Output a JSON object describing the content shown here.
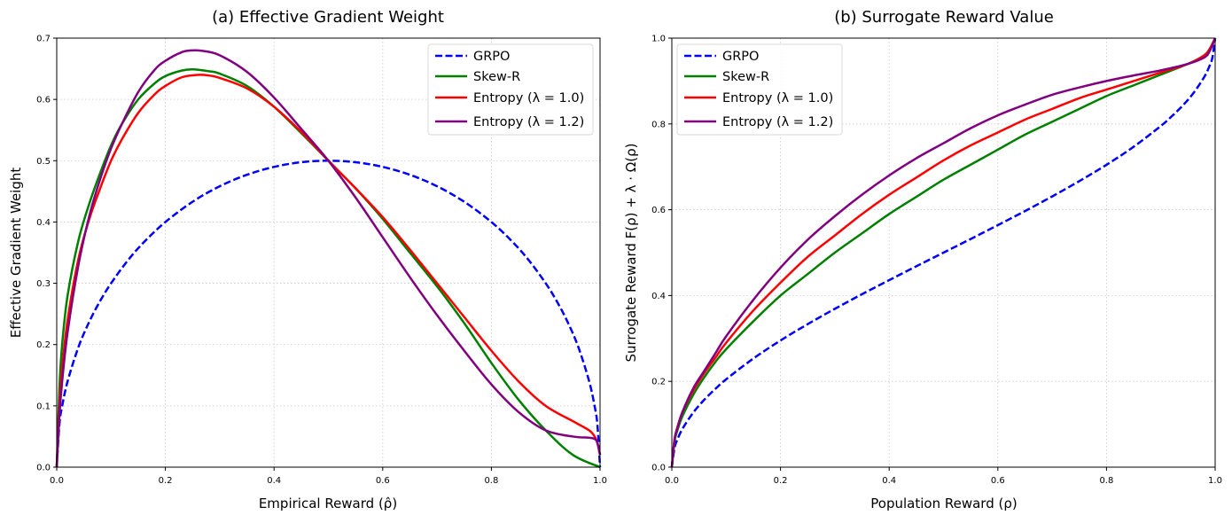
{
  "chart_data": [
    {
      "type": "line",
      "title": "(a) Effective Gradient Weight",
      "xlabel": "Empirical Reward (ρ̂)",
      "ylabel": "Effective Gradient Weight",
      "xlim": [
        0,
        1
      ],
      "ylim": [
        0,
        0.7
      ],
      "xticks": [
        "0.0",
        "0.2",
        "0.4",
        "0.6",
        "0.8",
        "1.0"
      ],
      "yticks": [
        "0.0",
        "0.1",
        "0.2",
        "0.3",
        "0.4",
        "0.5",
        "0.6",
        "0.7"
      ],
      "grid": true,
      "legend_position": "top-right",
      "series": [
        {
          "name": "GRPO",
          "legend_label": "GRPO",
          "color": "#0000ff",
          "style": "dashed",
          "points": [
            [
              0.0,
              0.0
            ],
            [
              0.005,
              0.0705
            ],
            [
              0.01,
              0.0995
            ],
            [
              0.02,
              0.14
            ],
            [
              0.04,
              0.196
            ],
            [
              0.06,
              0.2375
            ],
            [
              0.08,
              0.2713
            ],
            [
              0.1,
              0.3
            ],
            [
              0.13,
              0.3363
            ],
            [
              0.16,
              0.3666
            ],
            [
              0.2,
              0.4
            ],
            [
              0.25,
              0.433
            ],
            [
              0.3,
              0.4583
            ],
            [
              0.35,
              0.477
            ],
            [
              0.4,
              0.4899
            ],
            [
              0.45,
              0.4975
            ],
            [
              0.5,
              0.5
            ],
            [
              0.55,
              0.4975
            ],
            [
              0.6,
              0.4899
            ],
            [
              0.65,
              0.477
            ],
            [
              0.7,
              0.4583
            ],
            [
              0.75,
              0.433
            ],
            [
              0.8,
              0.4
            ],
            [
              0.84,
              0.3666
            ],
            [
              0.87,
              0.3363
            ],
            [
              0.9,
              0.3
            ],
            [
              0.92,
              0.2713
            ],
            [
              0.94,
              0.2375
            ],
            [
              0.96,
              0.196
            ],
            [
              0.98,
              0.14
            ],
            [
              0.99,
              0.0995
            ],
            [
              0.995,
              0.0705
            ],
            [
              1.0,
              0.0
            ]
          ]
        },
        {
          "name": "Skew-R",
          "legend_label": "Skew-R",
          "color": "#008000",
          "style": "solid",
          "points": [
            [
              0.0,
              0.0
            ],
            [
              0.005,
              0.13
            ],
            [
              0.01,
              0.2
            ],
            [
              0.02,
              0.28
            ],
            [
              0.04,
              0.37
            ],
            [
              0.06,
              0.43
            ],
            [
              0.08,
              0.48
            ],
            [
              0.1,
              0.525
            ],
            [
              0.12,
              0.56
            ],
            [
              0.15,
              0.6
            ],
            [
              0.18,
              0.626
            ],
            [
              0.2,
              0.638
            ],
            [
              0.23,
              0.647
            ],
            [
              0.25,
              0.649
            ],
            [
              0.28,
              0.646
            ],
            [
              0.3,
              0.642
            ],
            [
              0.35,
              0.622
            ],
            [
              0.4,
              0.588
            ],
            [
              0.45,
              0.545
            ],
            [
              0.5,
              0.5
            ],
            [
              0.55,
              0.455
            ],
            [
              0.6,
              0.405
            ],
            [
              0.65,
              0.35
            ],
            [
              0.7,
              0.295
            ],
            [
              0.75,
              0.235
            ],
            [
              0.8,
              0.17
            ],
            [
              0.85,
              0.11
            ],
            [
              0.9,
              0.06
            ],
            [
              0.95,
              0.02
            ],
            [
              1.0,
              0.0
            ]
          ]
        },
        {
          "name": "Entropy (λ=1.0)",
          "legend_label": "Entropy (λ = 1.0)",
          "color": "#ff0000",
          "style": "solid",
          "points": [
            [
              0.0,
              0.0
            ],
            [
              0.005,
              0.1
            ],
            [
              0.01,
              0.16
            ],
            [
              0.02,
              0.24
            ],
            [
              0.04,
              0.34
            ],
            [
              0.06,
              0.405
            ],
            [
              0.08,
              0.455
            ],
            [
              0.1,
              0.5
            ],
            [
              0.12,
              0.535
            ],
            [
              0.15,
              0.578
            ],
            [
              0.18,
              0.608
            ],
            [
              0.2,
              0.622
            ],
            [
              0.23,
              0.636
            ],
            [
              0.26,
              0.64
            ],
            [
              0.28,
              0.639
            ],
            [
              0.3,
              0.635
            ],
            [
              0.35,
              0.618
            ],
            [
              0.4,
              0.588
            ],
            [
              0.45,
              0.547
            ],
            [
              0.5,
              0.5
            ],
            [
              0.55,
              0.455
            ],
            [
              0.6,
              0.408
            ],
            [
              0.65,
              0.355
            ],
            [
              0.7,
              0.3
            ],
            [
              0.75,
              0.245
            ],
            [
              0.8,
              0.19
            ],
            [
              0.85,
              0.14
            ],
            [
              0.9,
              0.1
            ],
            [
              0.95,
              0.075
            ],
            [
              0.98,
              0.06
            ],
            [
              0.99,
              0.05
            ],
            [
              0.995,
              0.04
            ],
            [
              1.0,
              0.02
            ]
          ]
        },
        {
          "name": "Entropy (λ=1.2)",
          "legend_label": "Entropy (λ = 1.2)",
          "color": "#800080",
          "style": "solid",
          "points": [
            [
              0.0,
              0.0
            ],
            [
              0.005,
              0.085
            ],
            [
              0.01,
              0.14
            ],
            [
              0.02,
              0.22
            ],
            [
              0.04,
              0.33
            ],
            [
              0.06,
              0.41
            ],
            [
              0.08,
              0.47
            ],
            [
              0.1,
              0.52
            ],
            [
              0.12,
              0.56
            ],
            [
              0.15,
              0.612
            ],
            [
              0.18,
              0.648
            ],
            [
              0.2,
              0.663
            ],
            [
              0.23,
              0.677
            ],
            [
              0.25,
              0.68
            ],
            [
              0.27,
              0.679
            ],
            [
              0.3,
              0.672
            ],
            [
              0.35,
              0.645
            ],
            [
              0.4,
              0.603
            ],
            [
              0.45,
              0.552
            ],
            [
              0.5,
              0.5
            ],
            [
              0.55,
              0.44
            ],
            [
              0.6,
              0.375
            ],
            [
              0.65,
              0.31
            ],
            [
              0.7,
              0.248
            ],
            [
              0.75,
              0.19
            ],
            [
              0.8,
              0.135
            ],
            [
              0.85,
              0.09
            ],
            [
              0.9,
              0.06
            ],
            [
              0.95,
              0.05
            ],
            [
              0.98,
              0.048
            ],
            [
              0.99,
              0.046
            ],
            [
              0.995,
              0.04
            ],
            [
              1.0,
              0.02
            ]
          ]
        }
      ]
    },
    {
      "type": "line",
      "title": "(b) Surrogate Reward Value",
      "xlabel": "Population Reward (ρ)",
      "ylabel": "Surrogate Reward F(ρ) + λ · Ω(ρ)",
      "xlim": [
        0,
        1
      ],
      "ylim": [
        0,
        1
      ],
      "xticks": [
        "0.0",
        "0.2",
        "0.4",
        "0.6",
        "0.8",
        "1.0"
      ],
      "yticks": [
        "0.0",
        "0.2",
        "0.4",
        "0.6",
        "0.8",
        "1.0"
      ],
      "grid": true,
      "legend_position": "top-left",
      "series": [
        {
          "name": "GRPO",
          "legend_label": "GRPO",
          "color": "#0000ff",
          "style": "dashed",
          "points": [
            [
              0.0,
              0.0
            ],
            [
              0.005,
              0.045
            ],
            [
              0.01,
              0.0638
            ],
            [
              0.02,
              0.0903
            ],
            [
              0.04,
              0.1282
            ],
            [
              0.06,
              0.1575
            ],
            [
              0.08,
              0.1823
            ],
            [
              0.1,
              0.2048
            ],
            [
              0.15,
              0.2532
            ],
            [
              0.2,
              0.2952
            ],
            [
              0.25,
              0.3333
            ],
            [
              0.3,
              0.369
            ],
            [
              0.35,
              0.4031
            ],
            [
              0.4,
              0.4359
            ],
            [
              0.45,
              0.4682
            ],
            [
              0.5,
              0.5
            ],
            [
              0.55,
              0.5318
            ],
            [
              0.6,
              0.5641
            ],
            [
              0.65,
              0.5969
            ],
            [
              0.7,
              0.631
            ],
            [
              0.75,
              0.6667
            ],
            [
              0.8,
              0.7048
            ],
            [
              0.85,
              0.7468
            ],
            [
              0.9,
              0.7952
            ],
            [
              0.92,
              0.8177
            ],
            [
              0.94,
              0.8425
            ],
            [
              0.96,
              0.8718
            ],
            [
              0.98,
              0.9097
            ],
            [
              0.99,
              0.9362
            ],
            [
              0.995,
              0.955
            ],
            [
              1.0,
              1.0
            ]
          ]
        },
        {
          "name": "Skew-R",
          "legend_label": "Skew-R",
          "color": "#008000",
          "style": "solid",
          "points": [
            [
              0.0,
              0.0
            ],
            [
              0.005,
              0.06
            ],
            [
              0.01,
              0.085
            ],
            [
              0.02,
              0.12
            ],
            [
              0.04,
              0.17
            ],
            [
              0.06,
              0.21
            ],
            [
              0.08,
              0.245
            ],
            [
              0.1,
              0.275
            ],
            [
              0.15,
              0.34
            ],
            [
              0.2,
              0.4
            ],
            [
              0.25,
              0.45
            ],
            [
              0.3,
              0.5
            ],
            [
              0.35,
              0.545
            ],
            [
              0.4,
              0.59
            ],
            [
              0.45,
              0.63
            ],
            [
              0.5,
              0.67
            ],
            [
              0.55,
              0.705
            ],
            [
              0.6,
              0.74
            ],
            [
              0.65,
              0.775
            ],
            [
              0.7,
              0.805
            ],
            [
              0.75,
              0.835
            ],
            [
              0.8,
              0.865
            ],
            [
              0.85,
              0.89
            ],
            [
              0.9,
              0.915
            ],
            [
              0.95,
              0.94
            ],
            [
              0.98,
              0.96
            ],
            [
              0.99,
              0.975
            ],
            [
              1.0,
              1.0
            ]
          ]
        },
        {
          "name": "Entropy (λ=1.0)",
          "legend_label": "Entropy (λ = 1.0)",
          "color": "#ff0000",
          "style": "solid",
          "points": [
            [
              0.0,
              0.0
            ],
            [
              0.005,
              0.065
            ],
            [
              0.01,
              0.092
            ],
            [
              0.02,
              0.13
            ],
            [
              0.04,
              0.18
            ],
            [
              0.06,
              0.22
            ],
            [
              0.08,
              0.255
            ],
            [
              0.1,
              0.29
            ],
            [
              0.15,
              0.365
            ],
            [
              0.2,
              0.43
            ],
            [
              0.25,
              0.49
            ],
            [
              0.3,
              0.54
            ],
            [
              0.35,
              0.59
            ],
            [
              0.4,
              0.635
            ],
            [
              0.45,
              0.675
            ],
            [
              0.5,
              0.715
            ],
            [
              0.55,
              0.75
            ],
            [
              0.6,
              0.78
            ],
            [
              0.65,
              0.81
            ],
            [
              0.7,
              0.835
            ],
            [
              0.75,
              0.86
            ],
            [
              0.8,
              0.88
            ],
            [
              0.85,
              0.9
            ],
            [
              0.9,
              0.92
            ],
            [
              0.95,
              0.94
            ],
            [
              0.98,
              0.96
            ],
            [
              0.99,
              0.975
            ],
            [
              1.0,
              1.0
            ]
          ]
        },
        {
          "name": "Entropy (λ=1.2)",
          "legend_label": "Entropy (λ = 1.2)",
          "color": "#800080",
          "style": "solid",
          "points": [
            [
              0.0,
              0.0
            ],
            [
              0.005,
              0.065
            ],
            [
              0.01,
              0.09
            ],
            [
              0.02,
              0.13
            ],
            [
              0.04,
              0.185
            ],
            [
              0.06,
              0.225
            ],
            [
              0.08,
              0.265
            ],
            [
              0.1,
              0.305
            ],
            [
              0.15,
              0.39
            ],
            [
              0.2,
              0.465
            ],
            [
              0.25,
              0.53
            ],
            [
              0.3,
              0.585
            ],
            [
              0.35,
              0.635
            ],
            [
              0.4,
              0.68
            ],
            [
              0.45,
              0.72
            ],
            [
              0.5,
              0.755
            ],
            [
              0.55,
              0.79
            ],
            [
              0.6,
              0.82
            ],
            [
              0.65,
              0.845
            ],
            [
              0.7,
              0.868
            ],
            [
              0.75,
              0.885
            ],
            [
              0.8,
              0.9
            ],
            [
              0.85,
              0.913
            ],
            [
              0.9,
              0.925
            ],
            [
              0.95,
              0.94
            ],
            [
              0.98,
              0.955
            ],
            [
              0.99,
              0.97
            ],
            [
              1.0,
              1.0
            ]
          ]
        }
      ]
    }
  ]
}
